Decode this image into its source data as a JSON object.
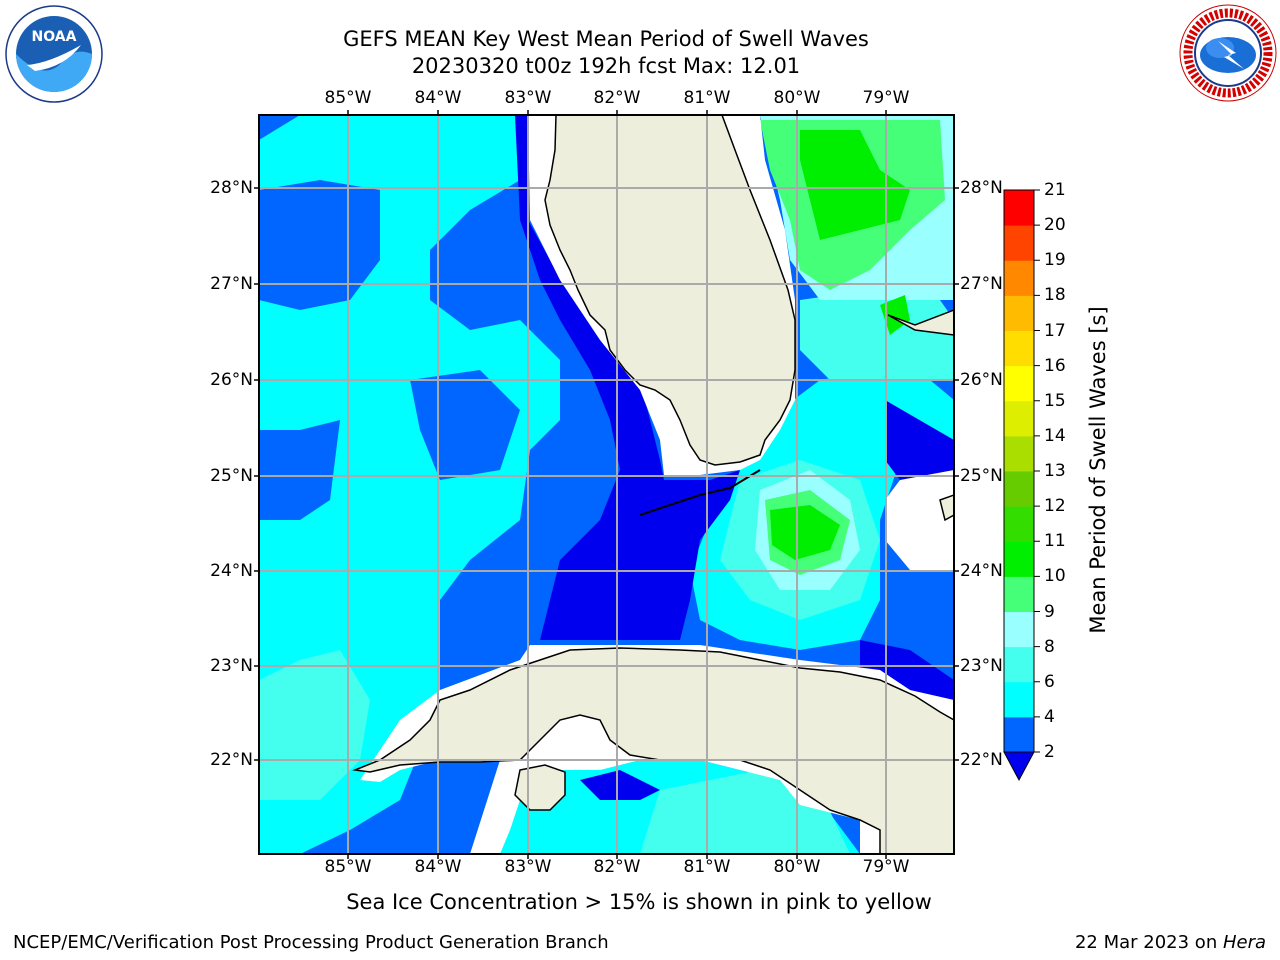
{
  "title_line1": "GEFS MEAN Key West Mean Period of Swell Waves",
  "title_line2": "20230320 t00z 192h fcst   Max: 12.01",
  "logos": {
    "left": "noaa-logo",
    "right": "nws-logo"
  },
  "longitude_labels": [
    "85°W",
    "84°W",
    "83°W",
    "82°W",
    "81°W",
    "80°W",
    "79°W"
  ],
  "latitude_labels": [
    "28°N",
    "27°N",
    "26°N",
    "25°N",
    "24°N",
    "23°N",
    "22°N"
  ],
  "colorbar": {
    "label": "Mean Period of Swell Waves [s]",
    "ticks": [
      "2",
      "4",
      "6",
      "8",
      "9",
      "10",
      "11",
      "12",
      "13",
      "14",
      "15",
      "16",
      "17",
      "18",
      "19",
      "20",
      "21"
    ],
    "colors": [
      "#0000ee",
      "#0066ff",
      "#00ffff",
      "#44ffee",
      "#99ffff",
      "#44ff77",
      "#00ee00",
      "#33dd00",
      "#66cc00",
      "#aadd00",
      "#ddee00",
      "#ffff00",
      "#ffdd00",
      "#ffbb00",
      "#ff8800",
      "#ff4400",
      "#ff0000"
    ],
    "extend_color": "#0000ee"
  },
  "caption": "Sea Ice Concentration > 15% is shown in pink to yellow",
  "footer_left": "NCEP/EMC/Verification Post Processing Product Generation Branch",
  "footer_date": "22 Mar 2023 on ",
  "footer_host": "Hera"
}
